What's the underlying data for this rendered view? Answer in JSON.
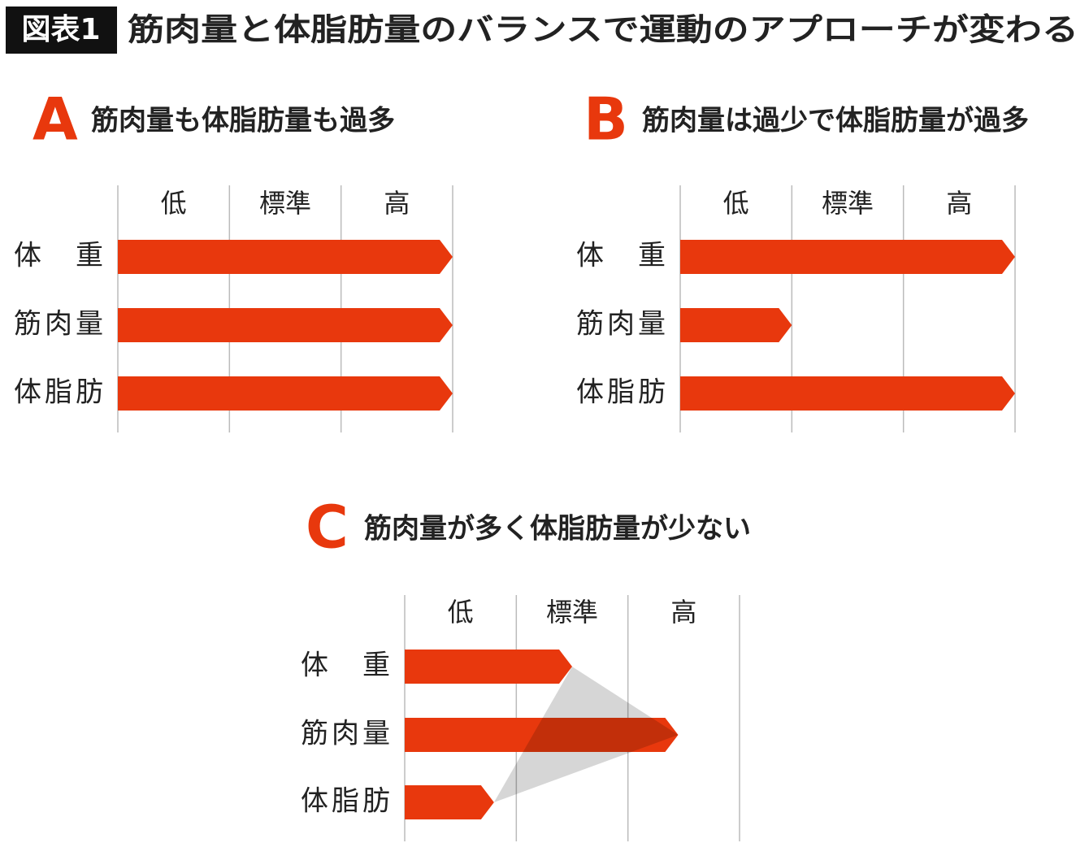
{
  "header": {
    "label": "図表1",
    "title": "筋肉量と体脂肪量のバランスで運動のアプローチが変わる"
  },
  "chart_data": [
    {
      "type": "bar",
      "letter": "A",
      "title": "筋肉量も体脂肪量も過多",
      "color": "#e8380d",
      "categories": [
        "体　重",
        "筋肉量",
        "体脂肪"
      ],
      "values": [
        3,
        3,
        3
      ],
      "xlim": [
        0,
        3
      ],
      "xticks": [
        {
          "value": 0.5,
          "label": "低"
        },
        {
          "value": 1.5,
          "label": "標準"
        },
        {
          "value": 2.5,
          "label": "高"
        }
      ]
    },
    {
      "type": "bar",
      "letter": "B",
      "title": "筋肉量は過少で体脂肪量が過多",
      "color": "#e8380d",
      "categories": [
        "体　重",
        "筋肉量",
        "体脂肪"
      ],
      "values": [
        3,
        1,
        3
      ],
      "xlim": [
        0,
        3
      ],
      "xticks": [
        {
          "value": 0.5,
          "label": "低"
        },
        {
          "value": 1.5,
          "label": "標準"
        },
        {
          "value": 2.5,
          "label": "高"
        }
      ]
    },
    {
      "type": "bar",
      "letter": "C",
      "title": "筋肉量が多く体脂肪量が少ない",
      "color": "#e8380d",
      "categories": [
        "体　重",
        "筋肉量",
        "体脂肪"
      ],
      "values": [
        1.5,
        2.45,
        0.8
      ],
      "xlim": [
        0,
        3
      ],
      "xticks": [
        {
          "value": 0.5,
          "label": "低"
        },
        {
          "value": 1.5,
          "label": "標準"
        },
        {
          "value": 2.5,
          "label": "高"
        }
      ]
    }
  ]
}
